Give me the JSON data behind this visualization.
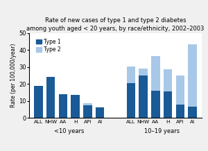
{
  "title_line1": "Rate of new cases of type 1 and type 2 diabetes",
  "title_line2": "among youth aged < 20 years, by race/ethnicity, 2002–2003",
  "xlabel_group1": "<10 years",
  "xlabel_group2": "10–19 years",
  "ylabel": "Rate (per 100,000/year)",
  "ylim": [
    0,
    50
  ],
  "yticks": [
    0,
    10,
    20,
    30,
    40,
    50
  ],
  "categories": [
    "ALL",
    "NHW",
    "AA",
    "H",
    "API",
    "AI"
  ],
  "type1_lt10": [
    19,
    24,
    14,
    13.5,
    7.5,
    6
  ],
  "type2_lt10": [
    0,
    0,
    0,
    0,
    1.0,
    0
  ],
  "type1_1019": [
    20.5,
    25,
    16,
    15.5,
    8,
    6.5
  ],
  "type2_1019": [
    10,
    4,
    20.5,
    13,
    17,
    37
  ],
  "color_type1": "#1a5a96",
  "color_type2": "#a8c8e8",
  "fig_bg": "#f0f0f0",
  "plot_bg": "#ffffff",
  "border_color": "#a0b8c8",
  "legend_type1": "Type 1",
  "legend_type2": "Type 2"
}
